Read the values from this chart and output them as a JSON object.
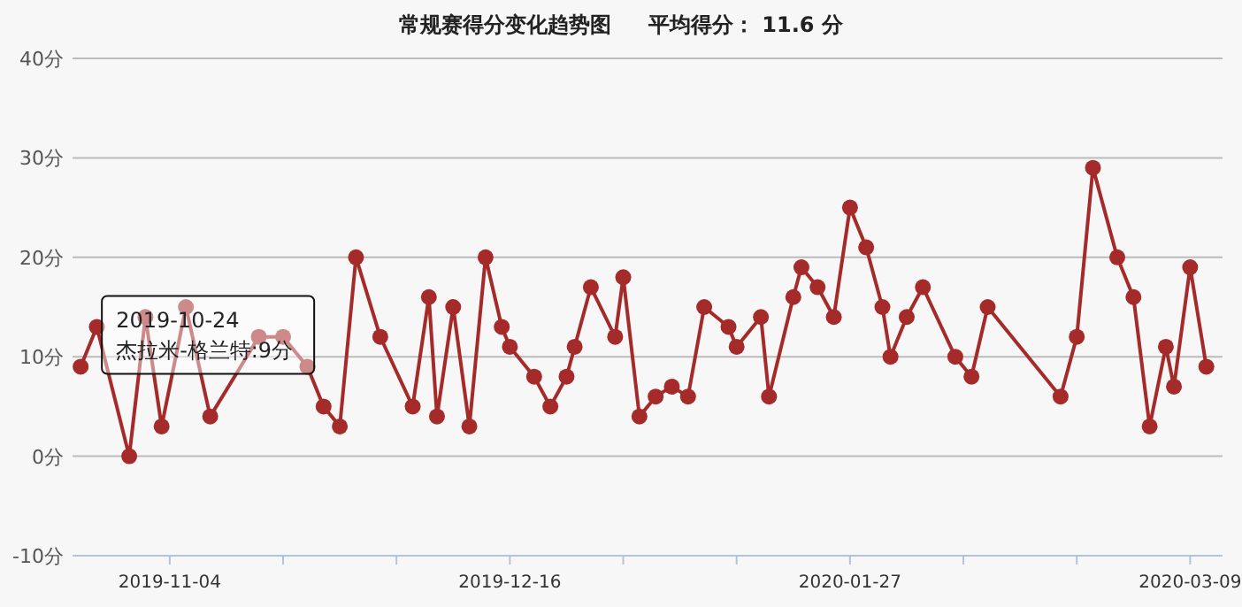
{
  "chart_data": {
    "type": "line",
    "title": "常规赛得分变化趋势图     平均得分： 11.6 分",
    "x": [
      "2019-10-24",
      "2019-10-26",
      "2019-10-30",
      "2019-11-01",
      "2019-11-03",
      "2019-11-06",
      "2019-11-09",
      "2019-11-15",
      "2019-11-18",
      "2019-11-21",
      "2019-11-23",
      "2019-11-25",
      "2019-11-27",
      "2019-11-30",
      "2019-12-04",
      "2019-12-06",
      "2019-12-07",
      "2019-12-09",
      "2019-12-11",
      "2019-12-13",
      "2019-12-15",
      "2019-12-16",
      "2019-12-19",
      "2019-12-21",
      "2019-12-23",
      "2019-12-24",
      "2019-12-26",
      "2019-12-29",
      "2019-12-30",
      "2020-01-01",
      "2020-01-03",
      "2020-01-05",
      "2020-01-07",
      "2020-01-09",
      "2020-01-12",
      "2020-01-13",
      "2020-01-16",
      "2020-01-17",
      "2020-01-20",
      "2020-01-21",
      "2020-01-23",
      "2020-01-25",
      "2020-01-27",
      "2020-01-29",
      "2020-01-31",
      "2020-02-01",
      "2020-02-03",
      "2020-02-05",
      "2020-02-09",
      "2020-02-11",
      "2020-02-13",
      "2020-02-22",
      "2020-02-24",
      "2020-02-26",
      "2020-02-29",
      "2020-03-02",
      "2020-03-04",
      "2020-03-06",
      "2020-03-07",
      "2020-03-09",
      "2020-03-11"
    ],
    "series": [
      {
        "color": "#a52a2a",
        "values": [
          9,
          13,
          0,
          14,
          3,
          15,
          4,
          12,
          12,
          9,
          5,
          3,
          20,
          12,
          5,
          16,
          4,
          15,
          3,
          20,
          13,
          11,
          8,
          5,
          8,
          11,
          17,
          12,
          18,
          4,
          6,
          7,
          6,
          15,
          13,
          11,
          14,
          6,
          16,
          19,
          17,
          14,
          25,
          21,
          15,
          10,
          14,
          17,
          10,
          8,
          15,
          6,
          12,
          29,
          20,
          16,
          3,
          11,
          7,
          19,
          9
        ]
      }
    ],
    "xlim": [
      "2019-10-23",
      "2020-03-13"
    ],
    "xticks": [
      {
        "value": "2019-11-04",
        "label": "2019-11-04"
      },
      {
        "value": "2019-11-18",
        "label": null
      },
      {
        "value": "2019-12-02",
        "label": null
      },
      {
        "value": "2019-12-16",
        "label": "2019-12-16"
      },
      {
        "value": "2019-12-30",
        "label": null
      },
      {
        "value": "2020-01-13",
        "label": null
      },
      {
        "value": "2020-01-27",
        "label": "2020-01-27"
      },
      {
        "value": "2020-02-10",
        "label": null
      },
      {
        "value": "2020-02-24",
        "label": null
      },
      {
        "value": "2020-03-09",
        "label": "2020-03-09"
      }
    ],
    "ylim": [
      -10,
      40
    ],
    "yticks": [
      {
        "value": -10,
        "label": "-10分"
      },
      {
        "value": 0,
        "label": "0分"
      },
      {
        "value": 10,
        "label": "10分"
      },
      {
        "value": 20,
        "label": "20分"
      },
      {
        "value": 30,
        "label": "30分"
      },
      {
        "value": 40,
        "label": "40分"
      }
    ],
    "grid": "y",
    "marker": "circle",
    "line_style": "solid",
    "annotations": [
      {
        "text": "2019-10-24\n杰拉米-格兰特:9分",
        "x": "2019-10-24",
        "y": 9
      }
    ]
  }
}
